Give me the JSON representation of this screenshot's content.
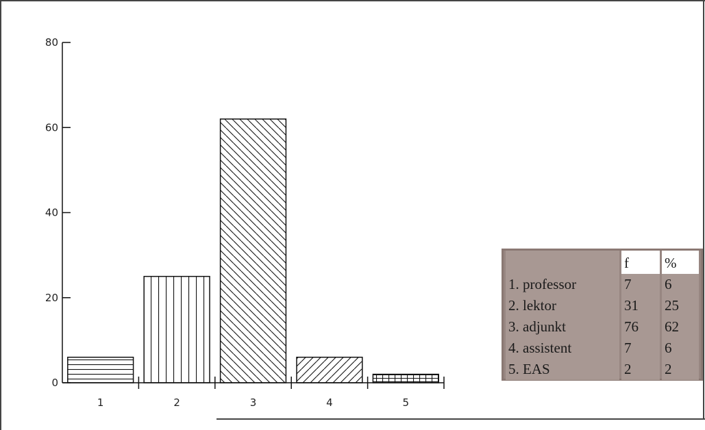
{
  "chart_data": {
    "type": "bar",
    "categories": [
      "1",
      "2",
      "3",
      "4",
      "5"
    ],
    "values": [
      6,
      25,
      62,
      6,
      2
    ],
    "ylim": [
      0,
      80
    ],
    "yticks": [
      0,
      20,
      40,
      60,
      80
    ],
    "patterns": [
      "horizontal",
      "vertical",
      "diagonal-down",
      "diagonal-up",
      "grid"
    ],
    "grid": false,
    "title": "",
    "xlabel": "",
    "ylabel": ""
  },
  "table": {
    "headers": [
      "",
      "f",
      "%"
    ],
    "rows": [
      {
        "label": "1. professor",
        "f": "7",
        "pct": "6"
      },
      {
        "label": "2. lektor",
        "f": "31",
        "pct": "25"
      },
      {
        "label": "3. adjunkt",
        "f": "76",
        "pct": "62"
      },
      {
        "label": "4. assistent",
        "f": "7",
        "pct": "6"
      },
      {
        "label": "5. EAS",
        "f": "2",
        "pct": "2"
      }
    ]
  },
  "colors": {
    "bar_stroke": "#111111",
    "table_bg": "#a89893"
  }
}
